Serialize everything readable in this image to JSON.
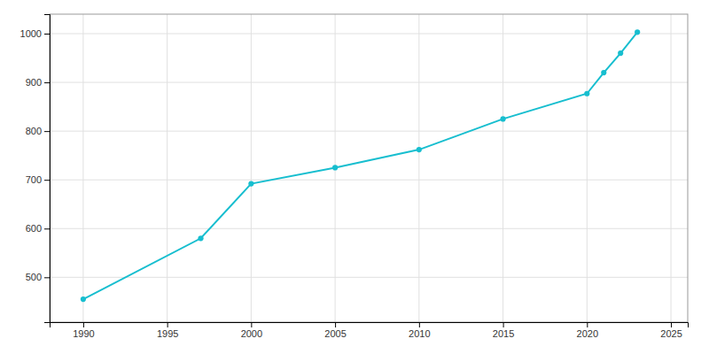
{
  "chart_data": {
    "type": "line",
    "x": [
      1990,
      1997,
      2000,
      2005,
      2010,
      2015,
      2020,
      2021,
      2022,
      2023
    ],
    "values": [
      455,
      580,
      692,
      725,
      762,
      825,
      877,
      920,
      960,
      1003
    ],
    "color": "#17BECF",
    "marker": "circle",
    "xlim": [
      1988,
      2026
    ],
    "ylim": [
      408,
      1040
    ],
    "xticks": [
      1990,
      1995,
      2000,
      2005,
      2010,
      2015,
      2020,
      2025
    ],
    "yticks": [
      500,
      600,
      700,
      800,
      900,
      1000
    ],
    "grid": true
  }
}
